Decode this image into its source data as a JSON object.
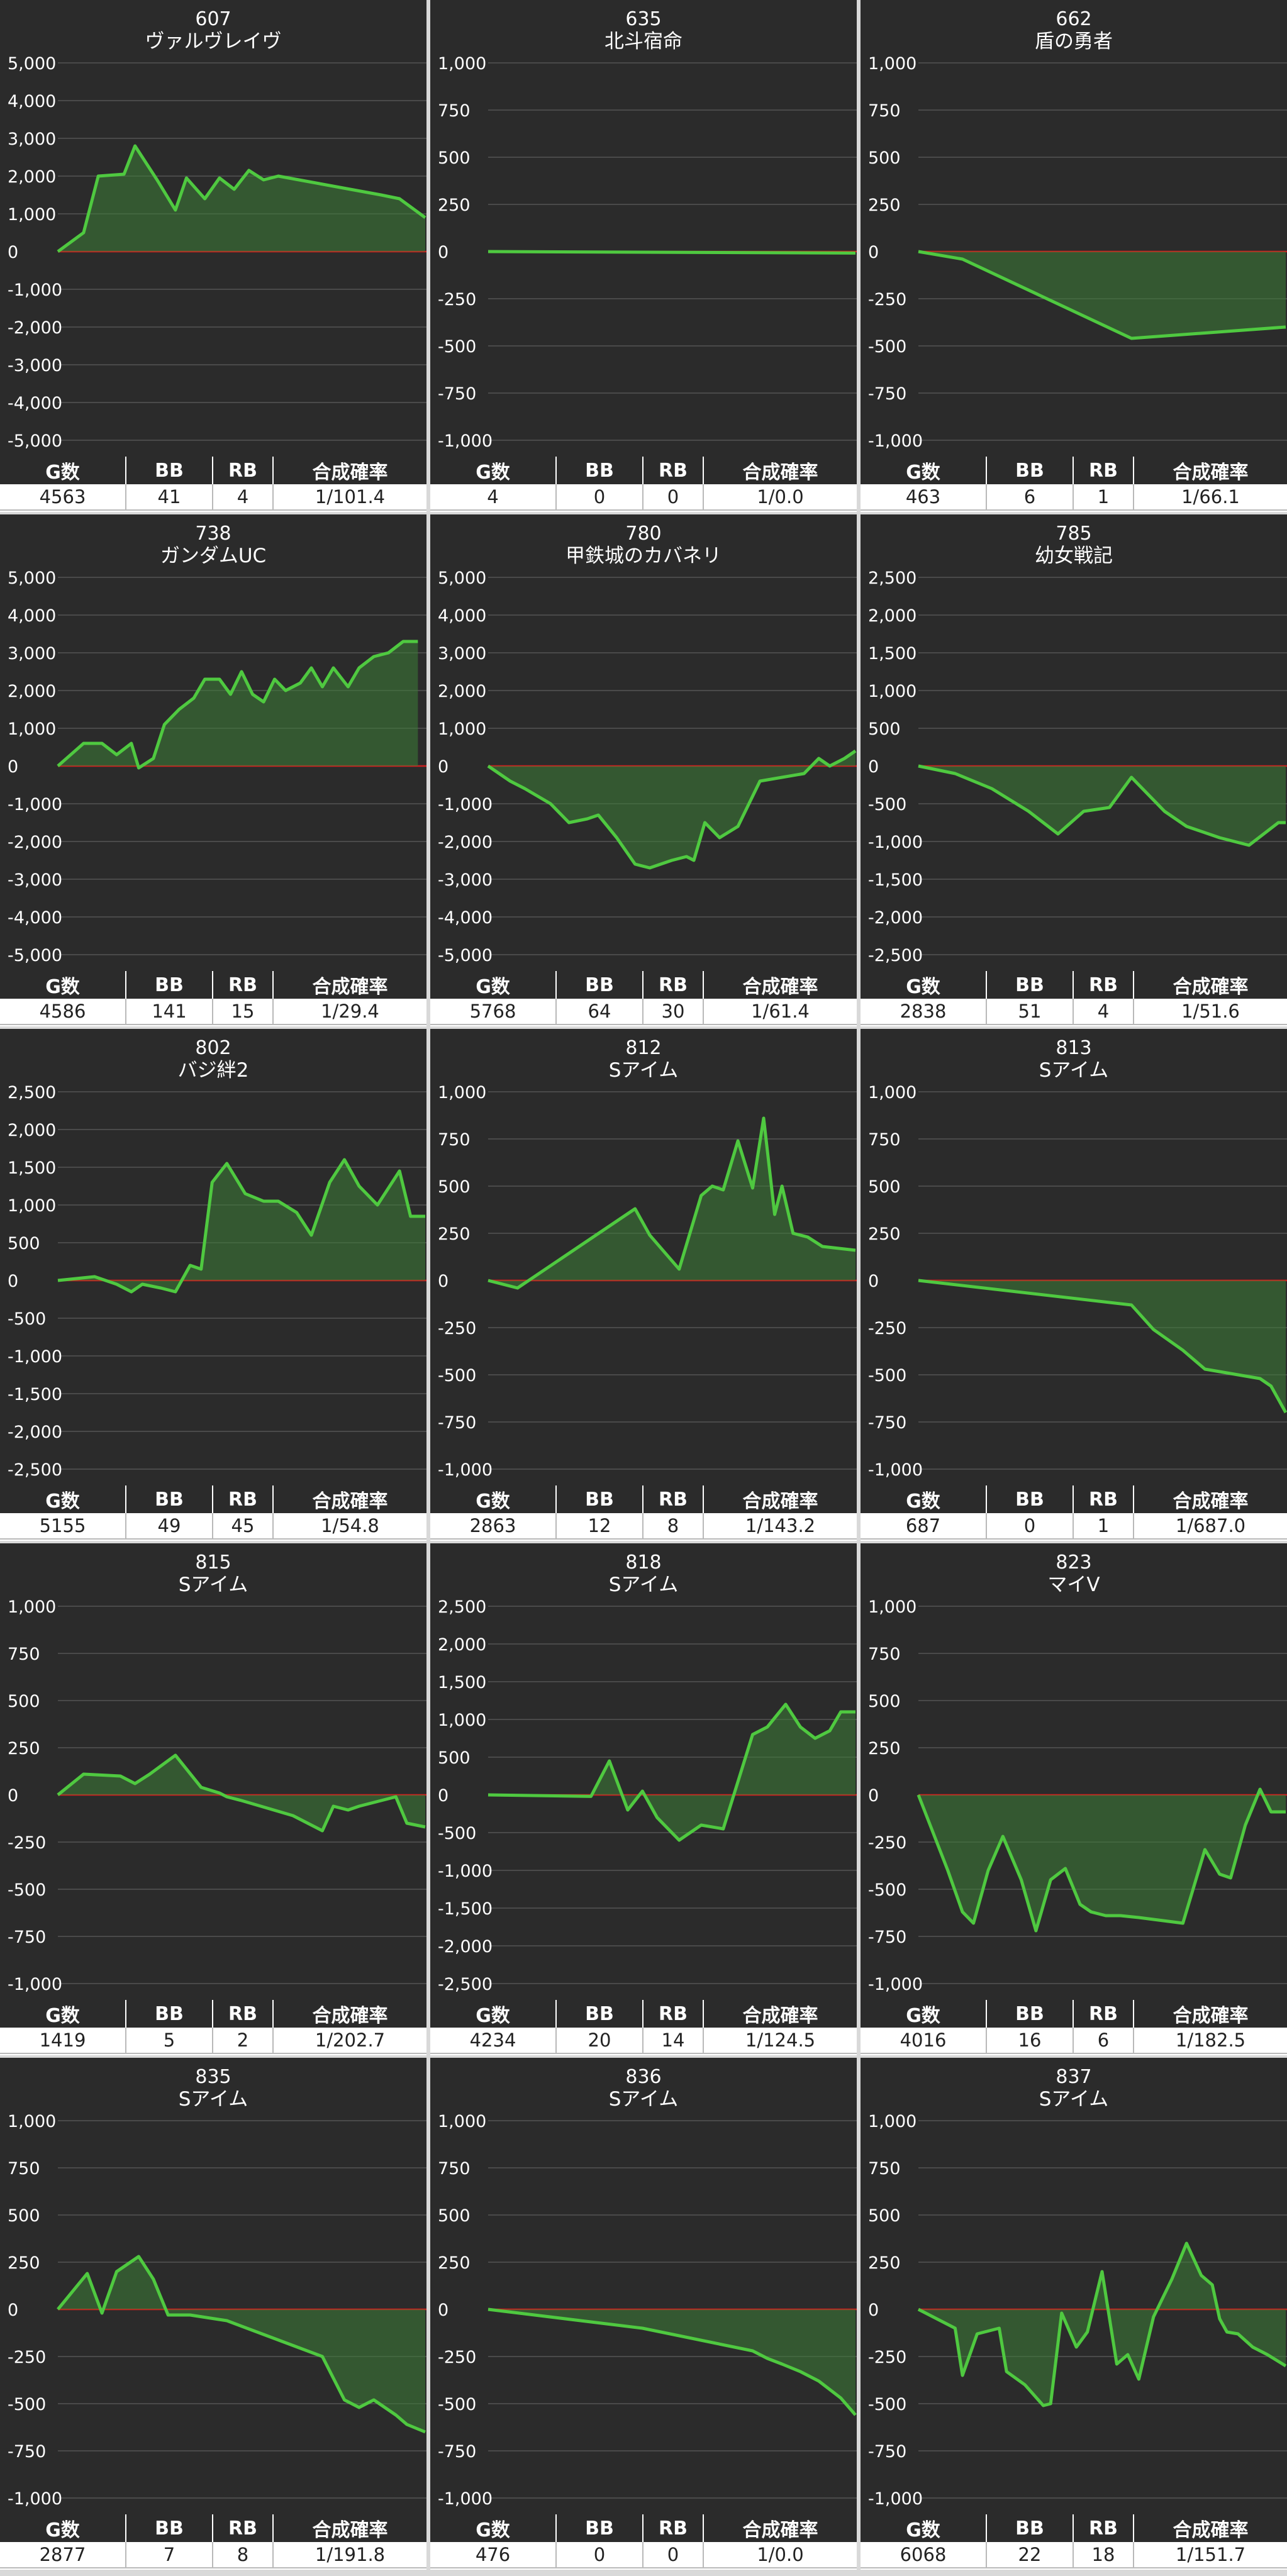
{
  "colors": {
    "panel_bg": "#2b2b2b",
    "grid": "#555555",
    "axis_text": "#ffffff",
    "zero_line": "#cc1f1f",
    "series_line": "#4fc940",
    "series_fill": "#3d7d36"
  },
  "stats_headers": {
    "games": "G数",
    "bb": "BB",
    "rb": "RB",
    "rate": "合成確率"
  },
  "chart_data": [
    {
      "type": "area",
      "number": "607",
      "name": "ヴァルヴレイヴ",
      "ylim": [
        -5000,
        5000
      ],
      "ticks": [
        "5,000",
        "4,000",
        "3,000",
        "2,000",
        "1,000",
        "0",
        "-1,000",
        "-2,000",
        "-3,000",
        "-4,000",
        "-5,000"
      ],
      "x": [
        0,
        0.07,
        0.11,
        0.18,
        0.21,
        0.27,
        0.32,
        0.35,
        0.4,
        0.44,
        0.48,
        0.52,
        0.56,
        0.6,
        0.88,
        0.93,
        1.0
      ],
      "y": [
        0,
        500,
        2000,
        2050,
        2800,
        1900,
        1100,
        1950,
        1400,
        1950,
        1650,
        2150,
        1900,
        2000,
        1500,
        1400,
        900
      ],
      "stats": {
        "games": "4563",
        "bb": "41",
        "rb": "4",
        "rate": "1/101.4"
      }
    },
    {
      "type": "area",
      "number": "635",
      "name": "北斗宿命",
      "ylim": [
        -1000,
        1000
      ],
      "ticks": [
        "1,000",
        "750",
        "500",
        "250",
        "0",
        "-250",
        "-500",
        "-750",
        "-1,000"
      ],
      "x": [
        0,
        1.0
      ],
      "y": [
        0,
        -8
      ],
      "stats": {
        "games": "4",
        "bb": "0",
        "rb": "0",
        "rate": "1/0.0"
      }
    },
    {
      "type": "area",
      "number": "662",
      "name": "盾の勇者",
      "ylim": [
        -1000,
        1000
      ],
      "ticks": [
        "1,000",
        "750",
        "500",
        "250",
        "0",
        "-250",
        "-500",
        "-750",
        "-1,000"
      ],
      "x": [
        0,
        0.12,
        0.58,
        1.0
      ],
      "y": [
        0,
        -40,
        -460,
        -400
      ],
      "stats": {
        "games": "463",
        "bb": "6",
        "rb": "1",
        "rate": "1/66.1"
      }
    },
    {
      "type": "area",
      "number": "738",
      "name": "ガンダムUC",
      "ylim": [
        -5000,
        5000
      ],
      "ticks": [
        "5,000",
        "4,000",
        "3,000",
        "2,000",
        "1,000",
        "0",
        "-1,000",
        "-2,000",
        "-3,000",
        "-4,000",
        "-5,000"
      ],
      "x": [
        0,
        0.07,
        0.12,
        0.16,
        0.2,
        0.22,
        0.26,
        0.29,
        0.33,
        0.37,
        0.4,
        0.44,
        0.47,
        0.5,
        0.53,
        0.56,
        0.59,
        0.62,
        0.66,
        0.69,
        0.72,
        0.75,
        0.79,
        0.82,
        0.86,
        0.9,
        0.94,
        0.98
      ],
      "y": [
        0,
        600,
        600,
        300,
        600,
        -50,
        200,
        1100,
        1500,
        1800,
        2300,
        2300,
        1900,
        2500,
        1900,
        1700,
        2300,
        2000,
        2200,
        2600,
        2100,
        2600,
        2100,
        2600,
        2900,
        3000,
        3300,
        3300
      ],
      "stats": {
        "games": "4586",
        "bb": "141",
        "rb": "15",
        "rate": "1/29.4"
      }
    },
    {
      "type": "area",
      "number": "780",
      "name": "甲鉄城のカバネリ",
      "ylim": [
        -5000,
        5000
      ],
      "ticks": [
        "5,000",
        "4,000",
        "3,000",
        "2,000",
        "1,000",
        "0",
        "-1,000",
        "-2,000",
        "-3,000",
        "-4,000",
        "-5,000"
      ],
      "x": [
        0,
        0.06,
        0.1,
        0.17,
        0.22,
        0.27,
        0.3,
        0.35,
        0.4,
        0.44,
        0.5,
        0.54,
        0.56,
        0.59,
        0.63,
        0.68,
        0.74,
        0.8,
        0.86,
        0.9,
        0.93,
        0.97,
        1.0
      ],
      "y": [
        0,
        -400,
        -600,
        -1000,
        -1500,
        -1400,
        -1300,
        -1900,
        -2600,
        -2700,
        -2500,
        -2400,
        -2500,
        -1500,
        -1900,
        -1600,
        -400,
        -300,
        -200,
        200,
        0,
        200,
        400
      ],
      "stats": {
        "games": "5768",
        "bb": "64",
        "rb": "30",
        "rate": "1/61.4"
      }
    },
    {
      "type": "area",
      "number": "785",
      "name": "幼女戦記",
      "ylim": [
        -2500,
        2500
      ],
      "ticks": [
        "2,500",
        "2,000",
        "1,500",
        "1,000",
        "500",
        "0",
        "-500",
        "-1,000",
        "-1,500",
        "-2,000",
        "-2,500"
      ],
      "x": [
        0,
        0.1,
        0.2,
        0.3,
        0.38,
        0.45,
        0.52,
        0.58,
        0.67,
        0.73,
        0.82,
        0.9,
        0.94,
        0.98,
        1.0
      ],
      "y": [
        0,
        -100,
        -300,
        -600,
        -900,
        -600,
        -550,
        -150,
        -600,
        -800,
        -950,
        -1050,
        -900,
        -750,
        -750
      ],
      "stats": {
        "games": "2838",
        "bb": "51",
        "rb": "4",
        "rate": "1/51.6"
      }
    },
    {
      "type": "area",
      "number": "802",
      "name": "バジ絆2",
      "ylim": [
        -2500,
        2500
      ],
      "ticks": [
        "2,500",
        "2,000",
        "1,500",
        "1,000",
        "500",
        "0",
        "-500",
        "-1,000",
        "-1,500",
        "-2,000",
        "-2,500"
      ],
      "x": [
        0,
        0.1,
        0.16,
        0.2,
        0.23,
        0.28,
        0.32,
        0.36,
        0.39,
        0.42,
        0.46,
        0.51,
        0.56,
        0.6,
        0.65,
        0.69,
        0.74,
        0.78,
        0.82,
        0.87,
        0.93,
        0.96,
        1.0
      ],
      "y": [
        0,
        50,
        -50,
        -150,
        -50,
        -100,
        -150,
        200,
        150,
        1300,
        1550,
        1150,
        1050,
        1050,
        900,
        600,
        1300,
        1600,
        1250,
        1000,
        1450,
        850,
        850
      ],
      "stats": {
        "games": "5155",
        "bb": "49",
        "rb": "45",
        "rate": "1/54.8"
      }
    },
    {
      "type": "area",
      "number": "812",
      "name": "Sアイム",
      "ylim": [
        -1000,
        1000
      ],
      "ticks": [
        "1,000",
        "750",
        "500",
        "250",
        "0",
        "-250",
        "-500",
        "-750",
        "-1,000"
      ],
      "x": [
        0,
        0.08,
        0.4,
        0.44,
        0.52,
        0.58,
        0.61,
        0.64,
        0.68,
        0.72,
        0.75,
        0.78,
        0.8,
        0.83,
        0.87,
        0.91,
        1.0
      ],
      "y": [
        0,
        -40,
        380,
        240,
        60,
        450,
        500,
        480,
        740,
        490,
        860,
        350,
        500,
        250,
        230,
        180,
        160
      ],
      "stats": {
        "games": "2863",
        "bb": "12",
        "rb": "8",
        "rate": "1/143.2"
      }
    },
    {
      "type": "area",
      "number": "813",
      "name": "Sアイム",
      "ylim": [
        -1000,
        1000
      ],
      "ticks": [
        "1,000",
        "750",
        "500",
        "250",
        "0",
        "-250",
        "-500",
        "-750",
        "-1,000"
      ],
      "x": [
        0,
        0.58,
        0.64,
        0.72,
        0.78,
        0.93,
        0.96,
        1.0
      ],
      "y": [
        0,
        -130,
        -260,
        -370,
        -470,
        -520,
        -560,
        -700
      ],
      "stats": {
        "games": "687",
        "bb": "0",
        "rb": "1",
        "rate": "1/687.0"
      }
    },
    {
      "type": "area",
      "number": "815",
      "name": "Sアイム",
      "ylim": [
        -1000,
        1000
      ],
      "ticks": [
        "1,000",
        "750",
        "500",
        "250",
        "0",
        "-250",
        "-500",
        "-750",
        "-1,000"
      ],
      "x": [
        0,
        0.07,
        0.17,
        0.21,
        0.25,
        0.32,
        0.39,
        0.44,
        0.46,
        0.5,
        0.64,
        0.72,
        0.75,
        0.79,
        0.82,
        0.92,
        0.95,
        1.0
      ],
      "y": [
        0,
        110,
        100,
        60,
        110,
        210,
        40,
        10,
        -10,
        -30,
        -110,
        -190,
        -60,
        -80,
        -60,
        -10,
        -150,
        -170
      ],
      "stats": {
        "games": "1419",
        "bb": "5",
        "rb": "2",
        "rate": "1/202.7"
      }
    },
    {
      "type": "area",
      "number": "818",
      "name": "Sアイム",
      "ylim": [
        -2500,
        2500
      ],
      "ticks": [
        "2,500",
        "2,000",
        "1,500",
        "1,000",
        "500",
        "0",
        "-500",
        "-1,000",
        "-1,500",
        "-2,000",
        "-2,500"
      ],
      "x": [
        0,
        0.28,
        0.33,
        0.38,
        0.42,
        0.46,
        0.52,
        0.58,
        0.64,
        0.72,
        0.76,
        0.81,
        0.85,
        0.89,
        0.93,
        0.96,
        1.0
      ],
      "y": [
        0,
        -20,
        450,
        -200,
        50,
        -300,
        -600,
        -400,
        -450,
        800,
        900,
        1200,
        900,
        750,
        850,
        1100,
        1100
      ],
      "stats": {
        "games": "4234",
        "bb": "20",
        "rb": "14",
        "rate": "1/124.5"
      }
    },
    {
      "type": "area",
      "number": "823",
      "name": "マイV",
      "ylim": [
        -1000,
        1000
      ],
      "ticks": [
        "1,000",
        "750",
        "500",
        "250",
        "0",
        "-250",
        "-500",
        "-750",
        "-1,000"
      ],
      "x": [
        0,
        0.04,
        0.08,
        0.12,
        0.15,
        0.19,
        0.23,
        0.28,
        0.32,
        0.36,
        0.4,
        0.44,
        0.47,
        0.51,
        0.55,
        0.6,
        0.64,
        0.72,
        0.78,
        0.82,
        0.85,
        0.89,
        0.93,
        0.96,
        1.0
      ],
      "y": [
        0,
        -200,
        -400,
        -620,
        -680,
        -400,
        -220,
        -450,
        -720,
        -450,
        -390,
        -580,
        -620,
        -640,
        -640,
        -650,
        -660,
        -680,
        -290,
        -420,
        -440,
        -160,
        30,
        -90,
        -90
      ],
      "stats": {
        "games": "4016",
        "bb": "16",
        "rb": "6",
        "rate": "1/182.5"
      }
    },
    {
      "type": "area",
      "number": "835",
      "name": "Sアイム",
      "ylim": [
        -1000,
        1000
      ],
      "ticks": [
        "1,000",
        "750",
        "500",
        "250",
        "0",
        "-250",
        "-500",
        "-750",
        "-1,000"
      ],
      "x": [
        0,
        0.08,
        0.12,
        0.16,
        0.22,
        0.26,
        0.3,
        0.36,
        0.46,
        0.72,
        0.78,
        0.82,
        0.86,
        0.92,
        0.95,
        1.0
      ],
      "y": [
        0,
        190,
        -20,
        200,
        280,
        160,
        -30,
        -30,
        -60,
        -250,
        -480,
        -520,
        -480,
        -560,
        -610,
        -650
      ],
      "stats": {
        "games": "2877",
        "bb": "7",
        "rb": "8",
        "rate": "1/191.8"
      }
    },
    {
      "type": "area",
      "number": "836",
      "name": "Sアイム",
      "ylim": [
        -1000,
        1000
      ],
      "ticks": [
        "1,000",
        "750",
        "500",
        "250",
        "0",
        "-250",
        "-500",
        "-750",
        "-1,000"
      ],
      "x": [
        0,
        0.42,
        0.72,
        0.76,
        0.8,
        0.85,
        0.9,
        0.96,
        1.0
      ],
      "y": [
        0,
        -100,
        -220,
        -260,
        -290,
        -330,
        -380,
        -470,
        -560
      ],
      "stats": {
        "games": "476",
        "bb": "0",
        "rb": "0",
        "rate": "1/0.0"
      }
    },
    {
      "type": "area",
      "number": "837",
      "name": "Sアイム",
      "ylim": [
        -1000,
        1000
      ],
      "ticks": [
        "1,000",
        "750",
        "500",
        "250",
        "0",
        "-250",
        "-500",
        "-750",
        "-1,000"
      ],
      "x": [
        0,
        0.04,
        0.1,
        0.12,
        0.16,
        0.22,
        0.24,
        0.29,
        0.34,
        0.36,
        0.39,
        0.43,
        0.46,
        0.5,
        0.54,
        0.57,
        0.6,
        0.64,
        0.69,
        0.73,
        0.77,
        0.8,
        0.82,
        0.84,
        0.87,
        0.91,
        0.95,
        1.0
      ],
      "y": [
        0,
        -40,
        -100,
        -350,
        -130,
        -100,
        -330,
        -400,
        -510,
        -500,
        -20,
        -200,
        -120,
        200,
        -290,
        -240,
        -370,
        -40,
        160,
        350,
        180,
        130,
        -50,
        -120,
        -130,
        -200,
        -240,
        -300
      ],
      "stats": {
        "games": "6068",
        "bb": "22",
        "rb": "18",
        "rate": "1/151.7"
      }
    }
  ]
}
